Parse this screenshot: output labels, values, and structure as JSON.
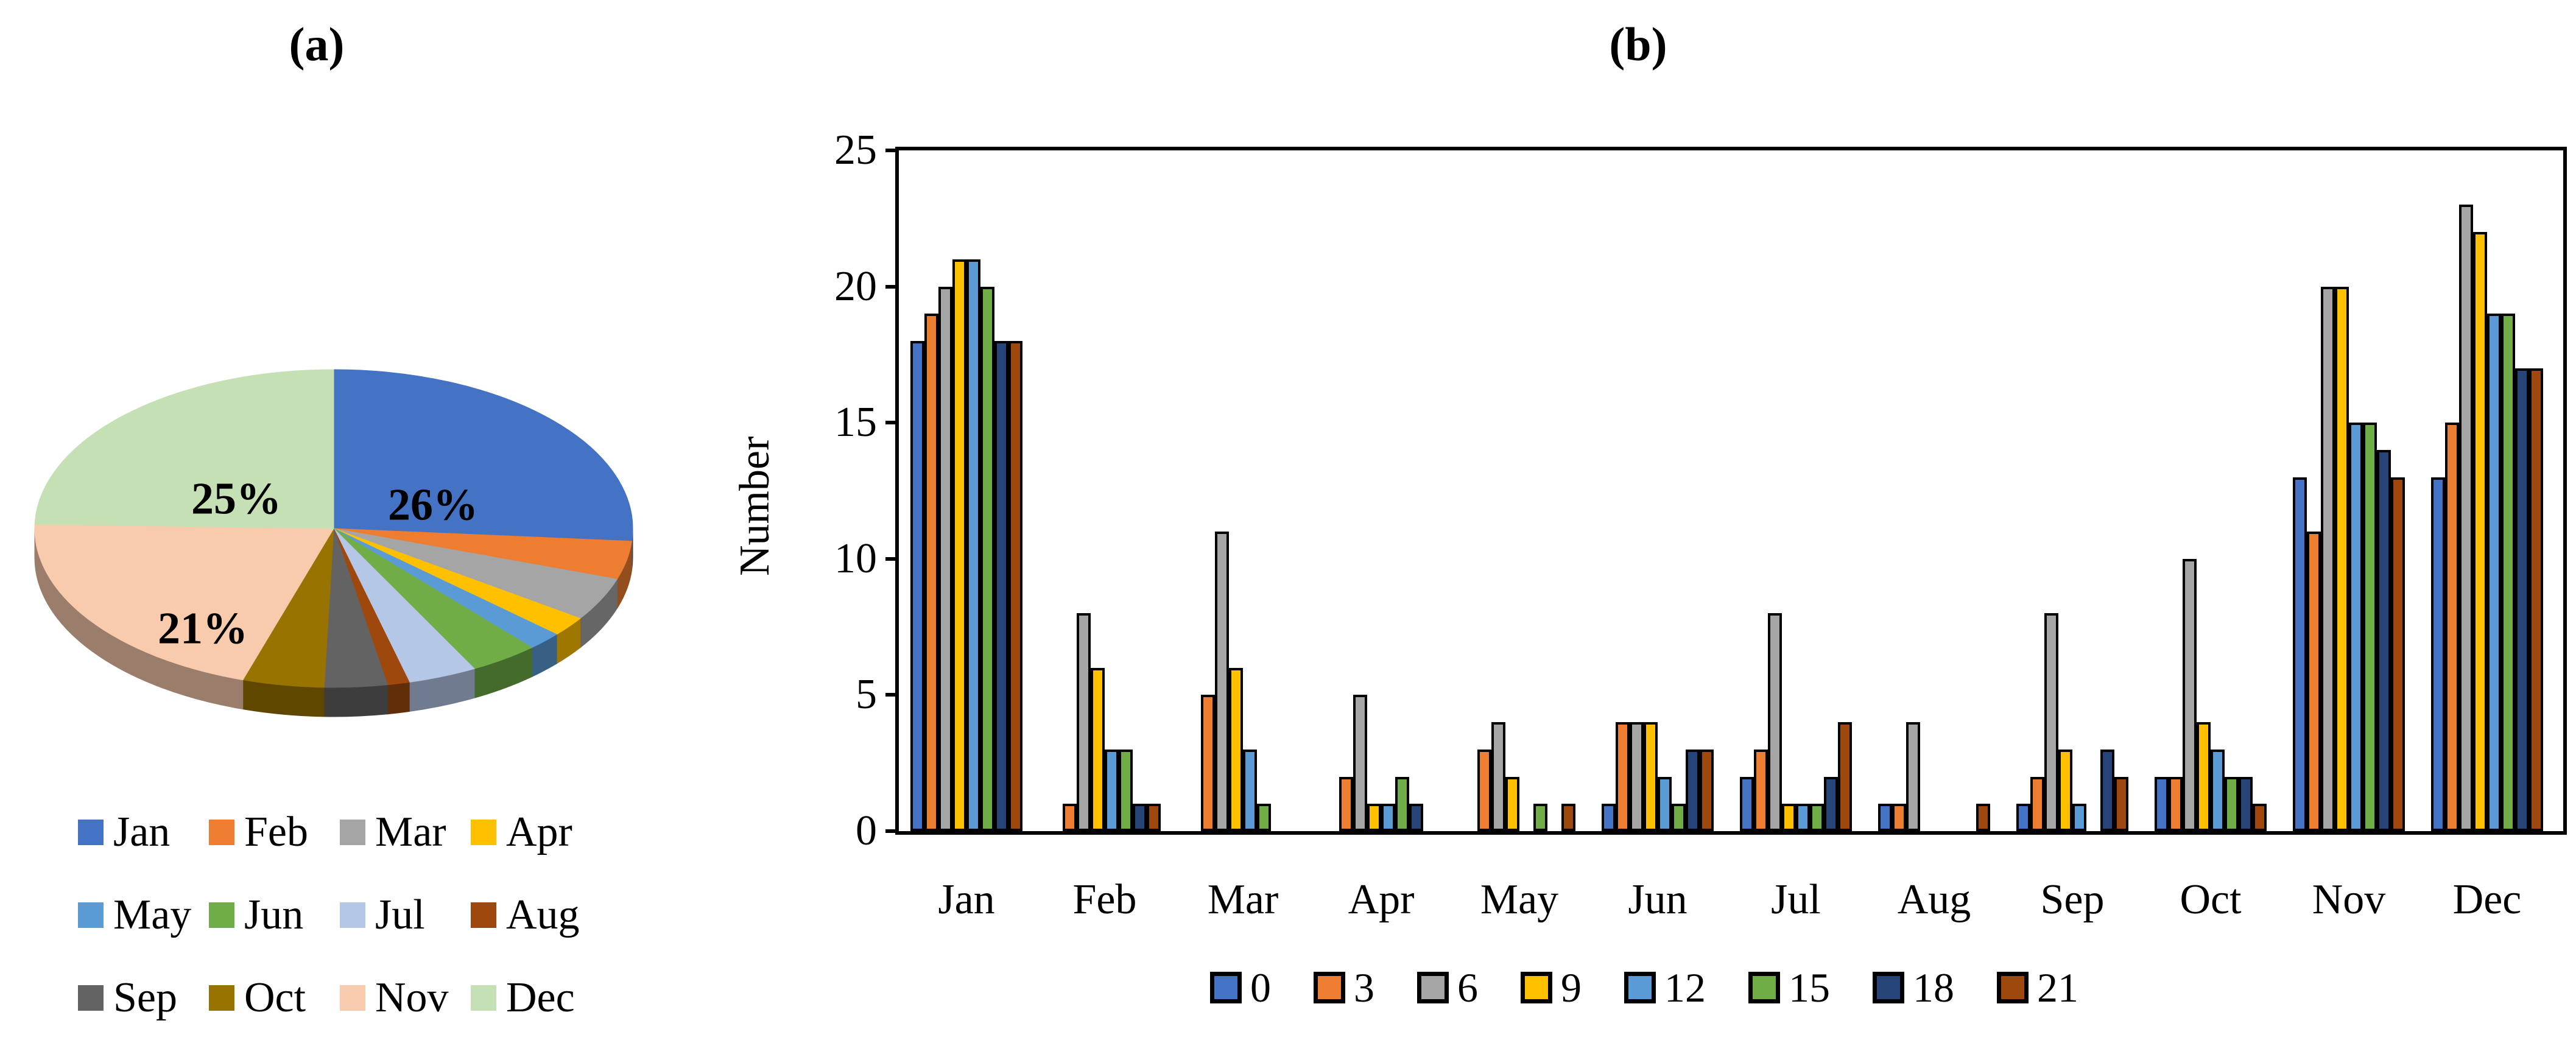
{
  "panels": {
    "a": {
      "title": "(a)"
    },
    "b": {
      "title": "(b)"
    }
  },
  "chart_data": [
    {
      "id": "monthly-share-pie",
      "type": "pie",
      "panel": "(a)",
      "categories": [
        "Jan",
        "Feb",
        "Mar",
        "Apr",
        "May",
        "Jun",
        "Jul",
        "Aug",
        "Sep",
        "Oct",
        "Nov",
        "Dec"
      ],
      "values": [
        155,
        23,
        26,
        12,
        11,
        22,
        22,
        7,
        20,
        26,
        121,
        145
      ],
      "percent_labels": [
        "26%",
        "",
        "",
        "",
        "",
        "",
        "",
        "",
        "",
        "",
        "21%",
        "25%"
      ],
      "colors": [
        "#4472C4",
        "#ED7D31",
        "#A5A5A5",
        "#FFC000",
        "#5B9BD5",
        "#70AD47",
        "#B4C7E7",
        "#9E480E",
        "#636363",
        "#997300",
        "#F8CBAD",
        "#C5E0B4"
      ],
      "legend_rows": [
        [
          "Jan",
          "Feb",
          "Mar",
          "Apr"
        ],
        [
          "May",
          "Jun",
          "Jul",
          "Aug"
        ],
        [
          "Sep",
          "Oct",
          "Nov",
          "Dec"
        ]
      ],
      "legend_position": "bottom",
      "style": "3d"
    },
    {
      "id": "monthly-counts-by-hour-bars",
      "type": "bar",
      "panel": "(b)",
      "ylabel": "Number",
      "xlabel": "",
      "ylim": [
        0,
        25
      ],
      "y_ticks": [
        0,
        5,
        10,
        15,
        20,
        25
      ],
      "grid": false,
      "bar_outline": "#000000",
      "categories": [
        "Jan",
        "Feb",
        "Mar",
        "Apr",
        "May",
        "Jun",
        "Jul",
        "Aug",
        "Sep",
        "Oct",
        "Nov",
        "Dec"
      ],
      "series": [
        {
          "name": "0",
          "color": "#4472C4",
          "values": [
            18,
            0,
            0,
            0,
            0,
            1,
            2,
            1,
            1,
            2,
            13,
            13
          ]
        },
        {
          "name": "3",
          "color": "#ED7D31",
          "values": [
            19,
            1,
            5,
            2,
            3,
            4,
            3,
            1,
            2,
            2,
            11,
            15
          ]
        },
        {
          "name": "6",
          "color": "#A5A5A5",
          "values": [
            20,
            8,
            11,
            5,
            4,
            4,
            8,
            4,
            8,
            10,
            20,
            23
          ]
        },
        {
          "name": "9",
          "color": "#FFC000",
          "values": [
            21,
            6,
            6,
            1,
            2,
            4,
            1,
            0,
            3,
            4,
            20,
            22
          ]
        },
        {
          "name": "12",
          "color": "#5B9BD5",
          "values": [
            21,
            3,
            3,
            1,
            0,
            2,
            1,
            0,
            1,
            3,
            15,
            19
          ]
        },
        {
          "name": "15",
          "color": "#70AD47",
          "values": [
            20,
            3,
            1,
            2,
            1,
            1,
            1,
            0,
            0,
            2,
            15,
            19
          ]
        },
        {
          "name": "18",
          "color": "#264478",
          "values": [
            18,
            1,
            0,
            1,
            0,
            3,
            2,
            0,
            3,
            2,
            14,
            17
          ]
        },
        {
          "name": "21",
          "color": "#9E480E",
          "values": [
            18,
            1,
            0,
            0,
            1,
            3,
            4,
            1,
            2,
            1,
            13,
            17
          ]
        }
      ],
      "legend_position": "bottom"
    }
  ]
}
